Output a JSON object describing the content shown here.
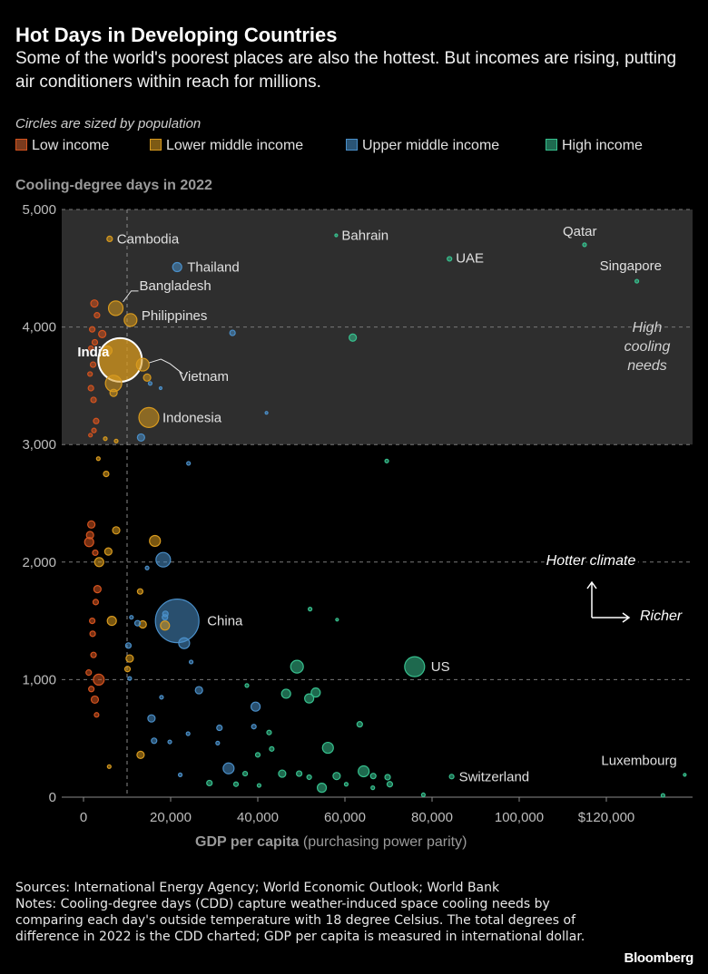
{
  "header": {
    "title": "Hot Days in Developing Countries",
    "subtitle": "Some of the world's poorest places are also the hottest. But incomes are rising, putting air conditioners within reach for millions.",
    "size_note": "Circles are sized by population"
  },
  "legend": [
    {
      "label": "Low income",
      "color": "#d4531f"
    },
    {
      "label": "Lower middle income",
      "color": "#d89a1e"
    },
    {
      "label": "Upper middle income",
      "color": "#4a8fc9"
    },
    {
      "label": "High income",
      "color": "#37c08e"
    }
  ],
  "axes": {
    "y_title": "Cooling-degree days in 2022",
    "x_title_bold": "GDP per capita",
    "x_title_rest": " (purchasing power parity)"
  },
  "annotations": {
    "high_cooling": [
      "High",
      "cooling",
      "needs"
    ],
    "hotter": "Hotter climate",
    "richer": "Richer"
  },
  "footer": {
    "sources": "Sources: International Energy Agency; World Economic Outlook; World Bank",
    "notes": "Notes: Cooling-degree days (CDD) capture weather-induced space cooling needs by comparing each day's outside temperature with 18 degree Celsius. The total degrees of difference in 2022 is the CDD charted; GDP per capita is measured in international dollar.",
    "brand": "Bloomberg"
  },
  "chart_data": {
    "type": "scatter",
    "title": "Hot Days in Developing Countries",
    "xlabel": "GDP per capita (purchasing power parity)",
    "ylabel": "Cooling-degree days in 2022",
    "xlim": [
      -3000,
      138000
    ],
    "ylim": [
      0,
      5000
    ],
    "x_ticks": [
      0,
      20000,
      40000,
      60000,
      80000,
      100000,
      120000
    ],
    "x_tick_labels": [
      "0",
      "20,000",
      "40,000",
      "60,000",
      "80,000",
      "100,000",
      "$120,000"
    ],
    "y_ticks": [
      0,
      1000,
      2000,
      3000,
      4000,
      5000
    ],
    "y_tick_labels": [
      "0",
      "1,000",
      "2,000",
      "3,000",
      "4,000",
      "5,000"
    ],
    "high_cooling_threshold": 3000,
    "reference_x": 10000,
    "colors": {
      "low": "#d4531f",
      "lower_middle": "#d89a1e",
      "upper_middle": "#4a8fc9",
      "high": "#37c08e"
    },
    "points": [
      {
        "label": "India",
        "x": 8400,
        "y": 3720,
        "r": 24,
        "g": "lower_middle",
        "emph": true
      },
      {
        "label": "China",
        "x": 21500,
        "y": 1500,
        "r": 24,
        "g": "upper_middle"
      },
      {
        "label": "Indonesia",
        "x": 15000,
        "y": 3230,
        "r": 11,
        "g": "lower_middle"
      },
      {
        "label": "Bangladesh",
        "x": 7400,
        "y": 4160,
        "r": 8,
        "g": "lower_middle"
      },
      {
        "label": "Philippines",
        "x": 10800,
        "y": 4060,
        "r": 7,
        "g": "lower_middle"
      },
      {
        "label": "Vietnam",
        "x": 13600,
        "y": 3680,
        "r": 7,
        "g": "lower_middle"
      },
      {
        "label": "Thailand",
        "x": 21500,
        "y": 4510,
        "r": 5,
        "g": "upper_middle"
      },
      {
        "label": "Cambodia",
        "x": 6000,
        "y": 4750,
        "r": 3,
        "g": "lower_middle"
      },
      {
        "label": "Bahrain",
        "x": 58000,
        "y": 4780,
        "r": 1.5,
        "g": "high"
      },
      {
        "label": "UAE",
        "x": 84000,
        "y": 4580,
        "r": 2.5,
        "g": "high"
      },
      {
        "label": "Qatar",
        "x": 115000,
        "y": 4700,
        "r": 2,
        "g": "high"
      },
      {
        "label": "Singapore",
        "x": 127000,
        "y": 4390,
        "r": 2,
        "g": "high"
      },
      {
        "label": "US",
        "x": 76000,
        "y": 1110,
        "r": 11,
        "g": "high"
      },
      {
        "label": "Switzerland",
        "x": 84500,
        "y": 175,
        "r": 2.5,
        "g": "high"
      },
      {
        "label": "Luxembourg",
        "x": 138000,
        "y": 190,
        "r": 1.5,
        "g": "high"
      },
      {
        "label": "",
        "x": 2500,
        "y": 4200,
        "r": 4,
        "g": "low"
      },
      {
        "label": "",
        "x": 3100,
        "y": 4100,
        "r": 3,
        "g": "low"
      },
      {
        "label": "",
        "x": 2000,
        "y": 3980,
        "r": 3,
        "g": "low"
      },
      {
        "label": "",
        "x": 4300,
        "y": 3940,
        "r": 4,
        "g": "low"
      },
      {
        "label": "",
        "x": 2600,
        "y": 3870,
        "r": 3,
        "g": "low"
      },
      {
        "label": "",
        "x": 1700,
        "y": 3820,
        "r": 2.5,
        "g": "low"
      },
      {
        "label": "",
        "x": 2200,
        "y": 3680,
        "r": 3,
        "g": "low"
      },
      {
        "label": "",
        "x": 1500,
        "y": 3600,
        "r": 2.5,
        "g": "low"
      },
      {
        "label": "",
        "x": 1700,
        "y": 3480,
        "r": 3,
        "g": "low"
      },
      {
        "label": "",
        "x": 2300,
        "y": 3380,
        "r": 3,
        "g": "low"
      },
      {
        "label": "",
        "x": 2900,
        "y": 3200,
        "r": 3,
        "g": "low"
      },
      {
        "label": "",
        "x": 2400,
        "y": 3120,
        "r": 2.5,
        "g": "low"
      },
      {
        "label": "",
        "x": 1600,
        "y": 3080,
        "r": 2,
        "g": "low"
      },
      {
        "label": "",
        "x": 1800,
        "y": 2320,
        "r": 4,
        "g": "low"
      },
      {
        "label": "",
        "x": 1500,
        "y": 2230,
        "r": 4,
        "g": "low"
      },
      {
        "label": "",
        "x": 1300,
        "y": 2170,
        "r": 5,
        "g": "low"
      },
      {
        "label": "",
        "x": 2700,
        "y": 2080,
        "r": 3,
        "g": "low"
      },
      {
        "label": "",
        "x": 3200,
        "y": 1770,
        "r": 4,
        "g": "low"
      },
      {
        "label": "",
        "x": 2800,
        "y": 1660,
        "r": 3,
        "g": "low"
      },
      {
        "label": "",
        "x": 2000,
        "y": 1500,
        "r": 3,
        "g": "low"
      },
      {
        "label": "",
        "x": 2100,
        "y": 1390,
        "r": 3,
        "g": "low"
      },
      {
        "label": "",
        "x": 2300,
        "y": 1210,
        "r": 3,
        "g": "low"
      },
      {
        "label": "",
        "x": 1200,
        "y": 1060,
        "r": 3,
        "g": "low"
      },
      {
        "label": "",
        "x": 3500,
        "y": 1000,
        "r": 6,
        "g": "low"
      },
      {
        "label": "",
        "x": 1800,
        "y": 920,
        "r": 3,
        "g": "low"
      },
      {
        "label": "",
        "x": 2600,
        "y": 830,
        "r": 4,
        "g": "low"
      },
      {
        "label": "",
        "x": 3000,
        "y": 700,
        "r": 2.5,
        "g": "low"
      },
      {
        "label": "",
        "x": 5500,
        "y": 3800,
        "r": 5,
        "g": "lower_middle"
      },
      {
        "label": "",
        "x": 6900,
        "y": 3520,
        "r": 9,
        "g": "lower_middle"
      },
      {
        "label": "",
        "x": 6900,
        "y": 3440,
        "r": 4,
        "g": "lower_middle"
      },
      {
        "label": "",
        "x": 14600,
        "y": 3570,
        "r": 4,
        "g": "lower_middle"
      },
      {
        "label": "",
        "x": 5000,
        "y": 3050,
        "r": 2,
        "g": "lower_middle"
      },
      {
        "label": "",
        "x": 7500,
        "y": 3030,
        "r": 2,
        "g": "lower_middle"
      },
      {
        "label": "",
        "x": 3400,
        "y": 2880,
        "r": 2,
        "g": "lower_middle"
      },
      {
        "label": "",
        "x": 5200,
        "y": 2750,
        "r": 3,
        "g": "lower_middle"
      },
      {
        "label": "",
        "x": 7500,
        "y": 2270,
        "r": 4,
        "g": "lower_middle"
      },
      {
        "label": "",
        "x": 16400,
        "y": 2180,
        "r": 6,
        "g": "lower_middle"
      },
      {
        "label": "",
        "x": 5700,
        "y": 2090,
        "r": 4,
        "g": "lower_middle"
      },
      {
        "label": "",
        "x": 3600,
        "y": 2000,
        "r": 5,
        "g": "lower_middle"
      },
      {
        "label": "",
        "x": 13000,
        "y": 1750,
        "r": 3,
        "g": "lower_middle"
      },
      {
        "label": "",
        "x": 6500,
        "y": 1500,
        "r": 5,
        "g": "lower_middle"
      },
      {
        "label": "",
        "x": 13600,
        "y": 1470,
        "r": 4,
        "g": "lower_middle"
      },
      {
        "label": "",
        "x": 18700,
        "y": 1460,
        "r": 5,
        "g": "lower_middle"
      },
      {
        "label": "",
        "x": 10600,
        "y": 1180,
        "r": 4,
        "g": "lower_middle"
      },
      {
        "label": "",
        "x": 10100,
        "y": 1090,
        "r": 3,
        "g": "lower_middle"
      },
      {
        "label": "",
        "x": 13100,
        "y": 360,
        "r": 4,
        "g": "lower_middle"
      },
      {
        "label": "",
        "x": 5900,
        "y": 260,
        "r": 2,
        "g": "lower_middle"
      },
      {
        "label": "",
        "x": 15300,
        "y": 3520,
        "r": 2,
        "g": "upper_middle"
      },
      {
        "label": "",
        "x": 34200,
        "y": 3950,
        "r": 3,
        "g": "upper_middle"
      },
      {
        "label": "",
        "x": 17700,
        "y": 3480,
        "r": 1.5,
        "g": "upper_middle"
      },
      {
        "label": "",
        "x": 13200,
        "y": 3060,
        "r": 4,
        "g": "upper_middle"
      },
      {
        "label": "",
        "x": 24100,
        "y": 2840,
        "r": 2,
        "g": "upper_middle"
      },
      {
        "label": "",
        "x": 42000,
        "y": 3270,
        "r": 1.5,
        "g": "upper_middle"
      },
      {
        "label": "",
        "x": 18300,
        "y": 2020,
        "r": 8,
        "g": "upper_middle"
      },
      {
        "label": "",
        "x": 14600,
        "y": 1950,
        "r": 2,
        "g": "upper_middle"
      },
      {
        "label": "",
        "x": 23100,
        "y": 1310,
        "r": 6,
        "g": "upper_middle"
      },
      {
        "label": "",
        "x": 18800,
        "y": 1560,
        "r": 3,
        "g": "upper_middle"
      },
      {
        "label": "",
        "x": 18700,
        "y": 1530,
        "r": 3,
        "g": "upper_middle"
      },
      {
        "label": "",
        "x": 11000,
        "y": 1530,
        "r": 2,
        "g": "upper_middle"
      },
      {
        "label": "",
        "x": 12400,
        "y": 1480,
        "r": 3,
        "g": "upper_middle"
      },
      {
        "label": "",
        "x": 10300,
        "y": 1290,
        "r": 3,
        "g": "upper_middle"
      },
      {
        "label": "",
        "x": 26500,
        "y": 910,
        "r": 4,
        "g": "upper_middle"
      },
      {
        "label": "",
        "x": 24700,
        "y": 1150,
        "r": 2,
        "g": "upper_middle"
      },
      {
        "label": "",
        "x": 17900,
        "y": 850,
        "r": 2,
        "g": "upper_middle"
      },
      {
        "label": "",
        "x": 15600,
        "y": 670,
        "r": 4,
        "g": "upper_middle"
      },
      {
        "label": "",
        "x": 16200,
        "y": 480,
        "r": 3,
        "g": "upper_middle"
      },
      {
        "label": "",
        "x": 31200,
        "y": 590,
        "r": 3,
        "g": "upper_middle"
      },
      {
        "label": "",
        "x": 39500,
        "y": 770,
        "r": 5,
        "g": "upper_middle"
      },
      {
        "label": "",
        "x": 39100,
        "y": 600,
        "r": 2.5,
        "g": "upper_middle"
      },
      {
        "label": "",
        "x": 33300,
        "y": 245,
        "r": 6,
        "g": "upper_middle"
      },
      {
        "label": "",
        "x": 24000,
        "y": 540,
        "r": 2,
        "g": "upper_middle"
      },
      {
        "label": "",
        "x": 22200,
        "y": 190,
        "r": 2,
        "g": "upper_middle"
      },
      {
        "label": "",
        "x": 19800,
        "y": 470,
        "r": 2,
        "g": "upper_middle"
      },
      {
        "label": "",
        "x": 30800,
        "y": 460,
        "r": 2,
        "g": "upper_middle"
      },
      {
        "label": "",
        "x": 10600,
        "y": 1010,
        "r": 2,
        "g": "upper_middle"
      },
      {
        "label": "",
        "x": 61800,
        "y": 3910,
        "r": 4,
        "g": "high"
      },
      {
        "label": "",
        "x": 69600,
        "y": 2860,
        "r": 2,
        "g": "high"
      },
      {
        "label": "",
        "x": 52000,
        "y": 1600,
        "r": 2,
        "g": "high"
      },
      {
        "label": "",
        "x": 58200,
        "y": 1510,
        "r": 1.5,
        "g": "high"
      },
      {
        "label": "",
        "x": 49000,
        "y": 1110,
        "r": 7,
        "g": "high"
      },
      {
        "label": "",
        "x": 46500,
        "y": 880,
        "r": 5,
        "g": "high"
      },
      {
        "label": "",
        "x": 53300,
        "y": 890,
        "r": 5,
        "g": "high"
      },
      {
        "label": "",
        "x": 51800,
        "y": 840,
        "r": 5,
        "g": "high"
      },
      {
        "label": "",
        "x": 37500,
        "y": 950,
        "r": 2,
        "g": "high"
      },
      {
        "label": "",
        "x": 42600,
        "y": 550,
        "r": 2.5,
        "g": "high"
      },
      {
        "label": "",
        "x": 43200,
        "y": 410,
        "r": 2.5,
        "g": "high"
      },
      {
        "label": "",
        "x": 56100,
        "y": 420,
        "r": 6,
        "g": "high"
      },
      {
        "label": "",
        "x": 63400,
        "y": 620,
        "r": 3,
        "g": "high"
      },
      {
        "label": "",
        "x": 64300,
        "y": 220,
        "r": 6,
        "g": "high"
      },
      {
        "label": "",
        "x": 58100,
        "y": 180,
        "r": 4,
        "g": "high"
      },
      {
        "label": "",
        "x": 60300,
        "y": 110,
        "r": 2,
        "g": "high"
      },
      {
        "label": "",
        "x": 54700,
        "y": 80,
        "r": 5,
        "g": "high"
      },
      {
        "label": "",
        "x": 45600,
        "y": 200,
        "r": 4,
        "g": "high"
      },
      {
        "label": "",
        "x": 49500,
        "y": 200,
        "r": 3,
        "g": "high"
      },
      {
        "label": "",
        "x": 51800,
        "y": 170,
        "r": 2.5,
        "g": "high"
      },
      {
        "label": "",
        "x": 40000,
        "y": 360,
        "r": 2.5,
        "g": "high"
      },
      {
        "label": "",
        "x": 40300,
        "y": 100,
        "r": 2,
        "g": "high"
      },
      {
        "label": "",
        "x": 37100,
        "y": 200,
        "r": 2.5,
        "g": "high"
      },
      {
        "label": "",
        "x": 35000,
        "y": 110,
        "r": 2.5,
        "g": "high"
      },
      {
        "label": "",
        "x": 28900,
        "y": 120,
        "r": 3,
        "g": "high"
      },
      {
        "label": "",
        "x": 66500,
        "y": 180,
        "r": 3,
        "g": "high"
      },
      {
        "label": "",
        "x": 69800,
        "y": 170,
        "r": 3,
        "g": "high"
      },
      {
        "label": "",
        "x": 70300,
        "y": 110,
        "r": 3,
        "g": "high"
      },
      {
        "label": "",
        "x": 66400,
        "y": 80,
        "r": 2,
        "g": "high"
      },
      {
        "label": "",
        "x": 78000,
        "y": 20,
        "r": 2,
        "g": "high"
      },
      {
        "label": "",
        "x": 133000,
        "y": 15,
        "r": 2,
        "g": "high"
      }
    ]
  }
}
